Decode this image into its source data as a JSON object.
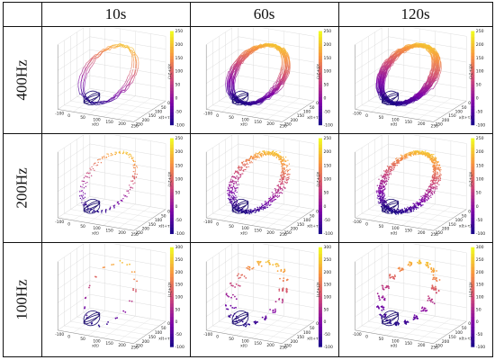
{
  "figure": {
    "column_headers": [
      "10s",
      "60s",
      "120s"
    ],
    "row_headers": [
      "400Hz",
      "200Hz",
      "100Hz"
    ]
  },
  "chart_data": {
    "type": "scatter",
    "subtype": "3d-phase-space-grid",
    "colormap": "plasma",
    "colors": {
      "low": "#0d0887",
      "mid": "#cc4778",
      "high": "#f0f921"
    },
    "columns": [
      "10s",
      "60s",
      "120s"
    ],
    "rows": [
      "400Hz",
      "200Hz",
      "100Hz"
    ],
    "colorbar": {
      "label": "x(t+2τ)",
      "ticks_rows_1_2": [
        "250",
        "200",
        "150",
        "100",
        "50",
        "0",
        "-50",
        "-100"
      ],
      "ticks_row_3": [
        "300",
        "250",
        "200",
        "150",
        "100",
        "50",
        "0",
        "-50",
        "-100"
      ],
      "range_rows_1_2": [
        -100,
        250
      ],
      "range_row_3": [
        -100,
        300
      ]
    },
    "axes": {
      "x_label": "x(t)",
      "y_label": "x(t+τ)",
      "z_label": "x(t+2τ)",
      "x_ticks": [
        "-100",
        "0",
        "50",
        "100",
        "150",
        "200",
        "250"
      ],
      "y_ticks": [
        "250",
        "200",
        "150",
        "100",
        "50",
        "0",
        "-50",
        "-100"
      ],
      "z_ticks": [
        "250",
        "200",
        "150",
        "100",
        "50",
        "0",
        "-50",
        "-100"
      ]
    },
    "grid": true,
    "marker_style_by_row": {
      "400Hz": "continuous-lines",
      "200Hz": "dotted",
      "100Hz": "sparse-dots"
    },
    "trajectory_density_by_column": {
      "10s": 1,
      "60s": 4,
      "120s": 6
    }
  }
}
